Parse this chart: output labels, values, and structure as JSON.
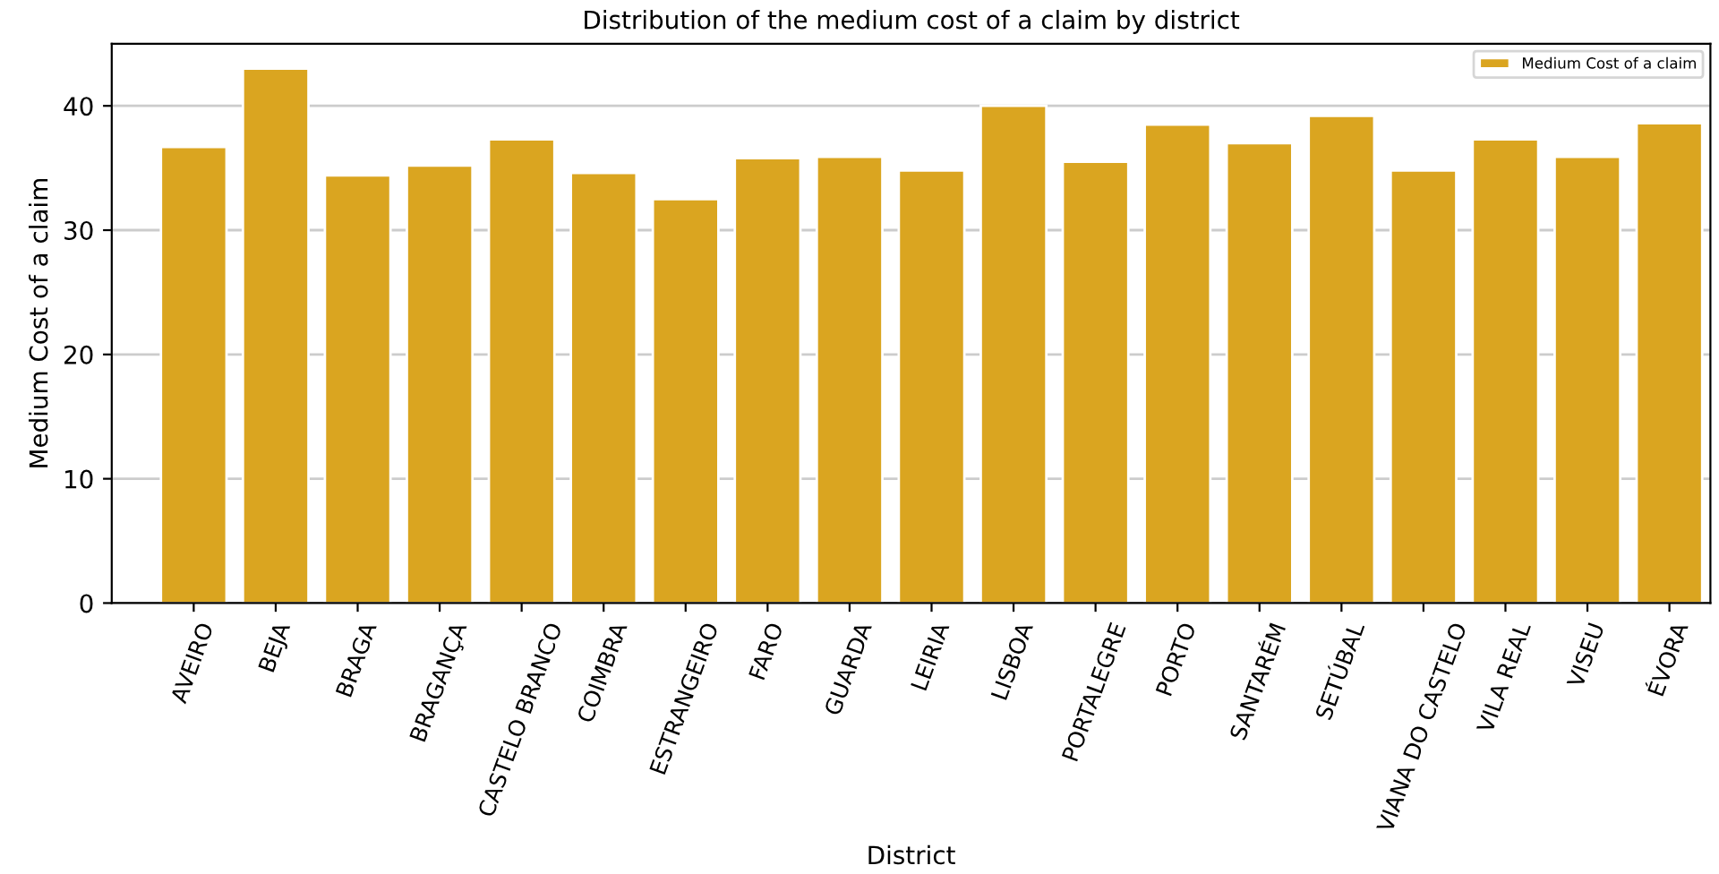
{
  "chart_data": {
    "type": "bar",
    "title": "Distribution of the medium cost of a claim by district",
    "xlabel": "District",
    "ylabel": "Medium Cost of a claim",
    "categories": [
      "AVEIRO",
      "BEJA",
      "BRAGA",
      "BRAGANÇA",
      "CASTELO BRANCO",
      "COIMBRA",
      "ESTRANGEIRO",
      "FARO",
      "GUARDA",
      "LEIRIA",
      "LISBOA",
      "PORTALEGRE",
      "PORTO",
      "SANTARÉM",
      "SETÚBAL",
      "VIANA DO CASTELO",
      "VILA REAL",
      "VISEU",
      "ÉVORA"
    ],
    "series": [
      {
        "name": "Medium Cost of a claim",
        "color": "#daa520",
        "values": [
          36.7,
          43.0,
          34.4,
          35.2,
          37.3,
          34.6,
          32.5,
          35.8,
          35.9,
          34.8,
          40.0,
          35.5,
          38.5,
          37.0,
          39.2,
          34.8,
          37.3,
          35.9,
          38.6
        ]
      }
    ],
    "ylim": [
      0,
      45
    ],
    "yticks": [
      0,
      10,
      20,
      30,
      40
    ],
    "grid": "y",
    "legend": "top right"
  }
}
